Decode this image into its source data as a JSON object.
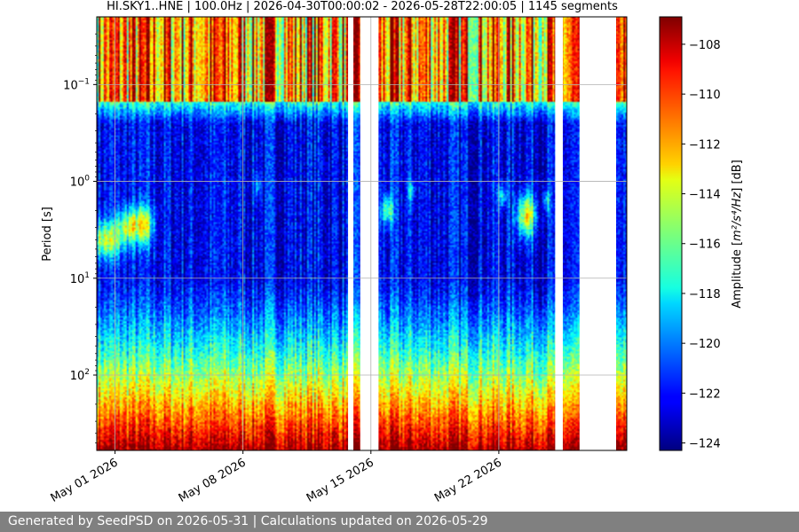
{
  "chart_data": {
    "type": "heatmap",
    "title": "HI.SKY1..HNE | 100.0Hz | 2026-04-30T00:00:02 - 2026-05-28T22:00:05 | 1145 segments",
    "ylabel": "Period [s]",
    "y_scale": "log",
    "y_inverted": true,
    "ylim": [
      0.02,
      600
    ],
    "y_ticks": [
      {
        "value": 0.1,
        "base": "10",
        "exp": "−1"
      },
      {
        "value": 1,
        "base": "10",
        "exp": "0"
      },
      {
        "value": 10,
        "base": "10",
        "exp": "1"
      },
      {
        "value": 100,
        "base": "10",
        "exp": "2"
      }
    ],
    "xlim": [
      "2026-04-30",
      "2026-05-29"
    ],
    "x_ticks": [
      {
        "date": "2026-05-01",
        "label": "May 01 2026"
      },
      {
        "date": "2026-05-08",
        "label": "May 08 2026"
      },
      {
        "date": "2026-05-15",
        "label": "May 15 2026"
      },
      {
        "date": "2026-05-22",
        "label": "May 22 2026"
      }
    ],
    "grid": true,
    "data_gaps": [
      {
        "start": "2026-05-13T18:00",
        "end": "2026-05-14T01:00"
      },
      {
        "start": "2026-05-14T10:00",
        "end": "2026-05-15T10:00"
      },
      {
        "start": "2026-05-25T02:00",
        "end": "2026-05-25T12:00"
      },
      {
        "start": "2026-05-26T10:00",
        "end": "2026-05-28T10:00"
      }
    ],
    "colorbar": {
      "label_prefix": "Amplitude [",
      "label_math": "m²/s⁴/Hz",
      "label_suffix": "] [dB]",
      "min": -124.3,
      "max": -106.9,
      "colormap": "jet",
      "ticks": [
        -108,
        -110,
        -112,
        -114,
        -116,
        -118,
        -120,
        -122,
        -124
      ],
      "tick_labels": [
        "−108",
        "−110",
        "−112",
        "−114",
        "−116",
        "−118",
        "−120",
        "−122",
        "−124"
      ]
    }
  },
  "footer": {
    "text": "Generated by SeedPSD on 2026-05-31 | Calculations updated on 2026-05-29"
  }
}
